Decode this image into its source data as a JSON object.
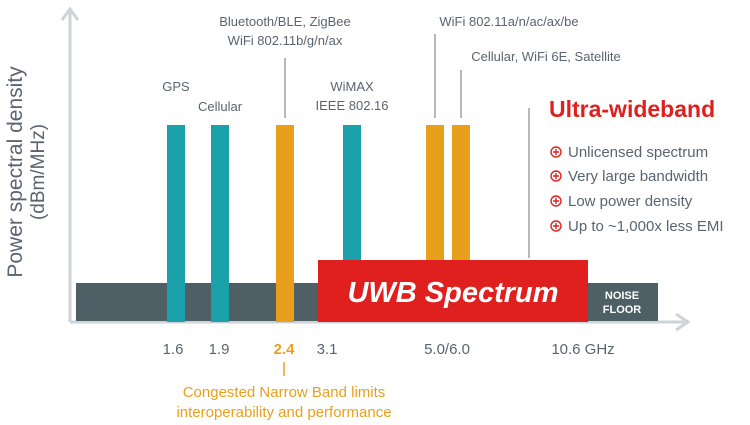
{
  "y_axis": {
    "title": "Power spectral density",
    "unit": "(dBm/MHz)"
  },
  "noise_floor": {
    "label_line1": "NOISE",
    "label_line2": "FLOOR"
  },
  "uwb_block": {
    "label": "UWB Spectrum"
  },
  "band_labels": {
    "gps": "GPS",
    "cellular": "Cellular",
    "bluetooth_line1": "Bluetooth/BLE, ZigBee",
    "bluetooth_line2": "WiFi 802.11b/g/n/ax",
    "wimax_line1": "WiMAX",
    "wimax_line2": "IEEE 802.16",
    "wifi5": "WiFi 802.11a/n/ac/ax/be",
    "wifi6e": "Cellular, WiFi 6E, Satellite"
  },
  "freq_ticks": {
    "t1_6": "1.6",
    "t1_9": "1.9",
    "t2_4": "2.4",
    "t3_1": "3.1",
    "t5_6": "5.0/6.0",
    "t10_6": "10.6 GHz"
  },
  "congested_note": {
    "line1": "Congested Narrow Band limits",
    "line2": "interoperability and performance"
  },
  "uwb_panel": {
    "title": "Ultra-wideband",
    "items": [
      "Unlicensed spectrum",
      "Very large bandwidth",
      "Low power density",
      "Up to ~1,000x less EMI"
    ]
  },
  "colors": {
    "teal": "#1aa1a9",
    "orange": "#e8a01c",
    "red": "#e0201e",
    "noise": "#4e5f66",
    "text": "#5a6470",
    "axis": "#cfd3d6"
  }
}
